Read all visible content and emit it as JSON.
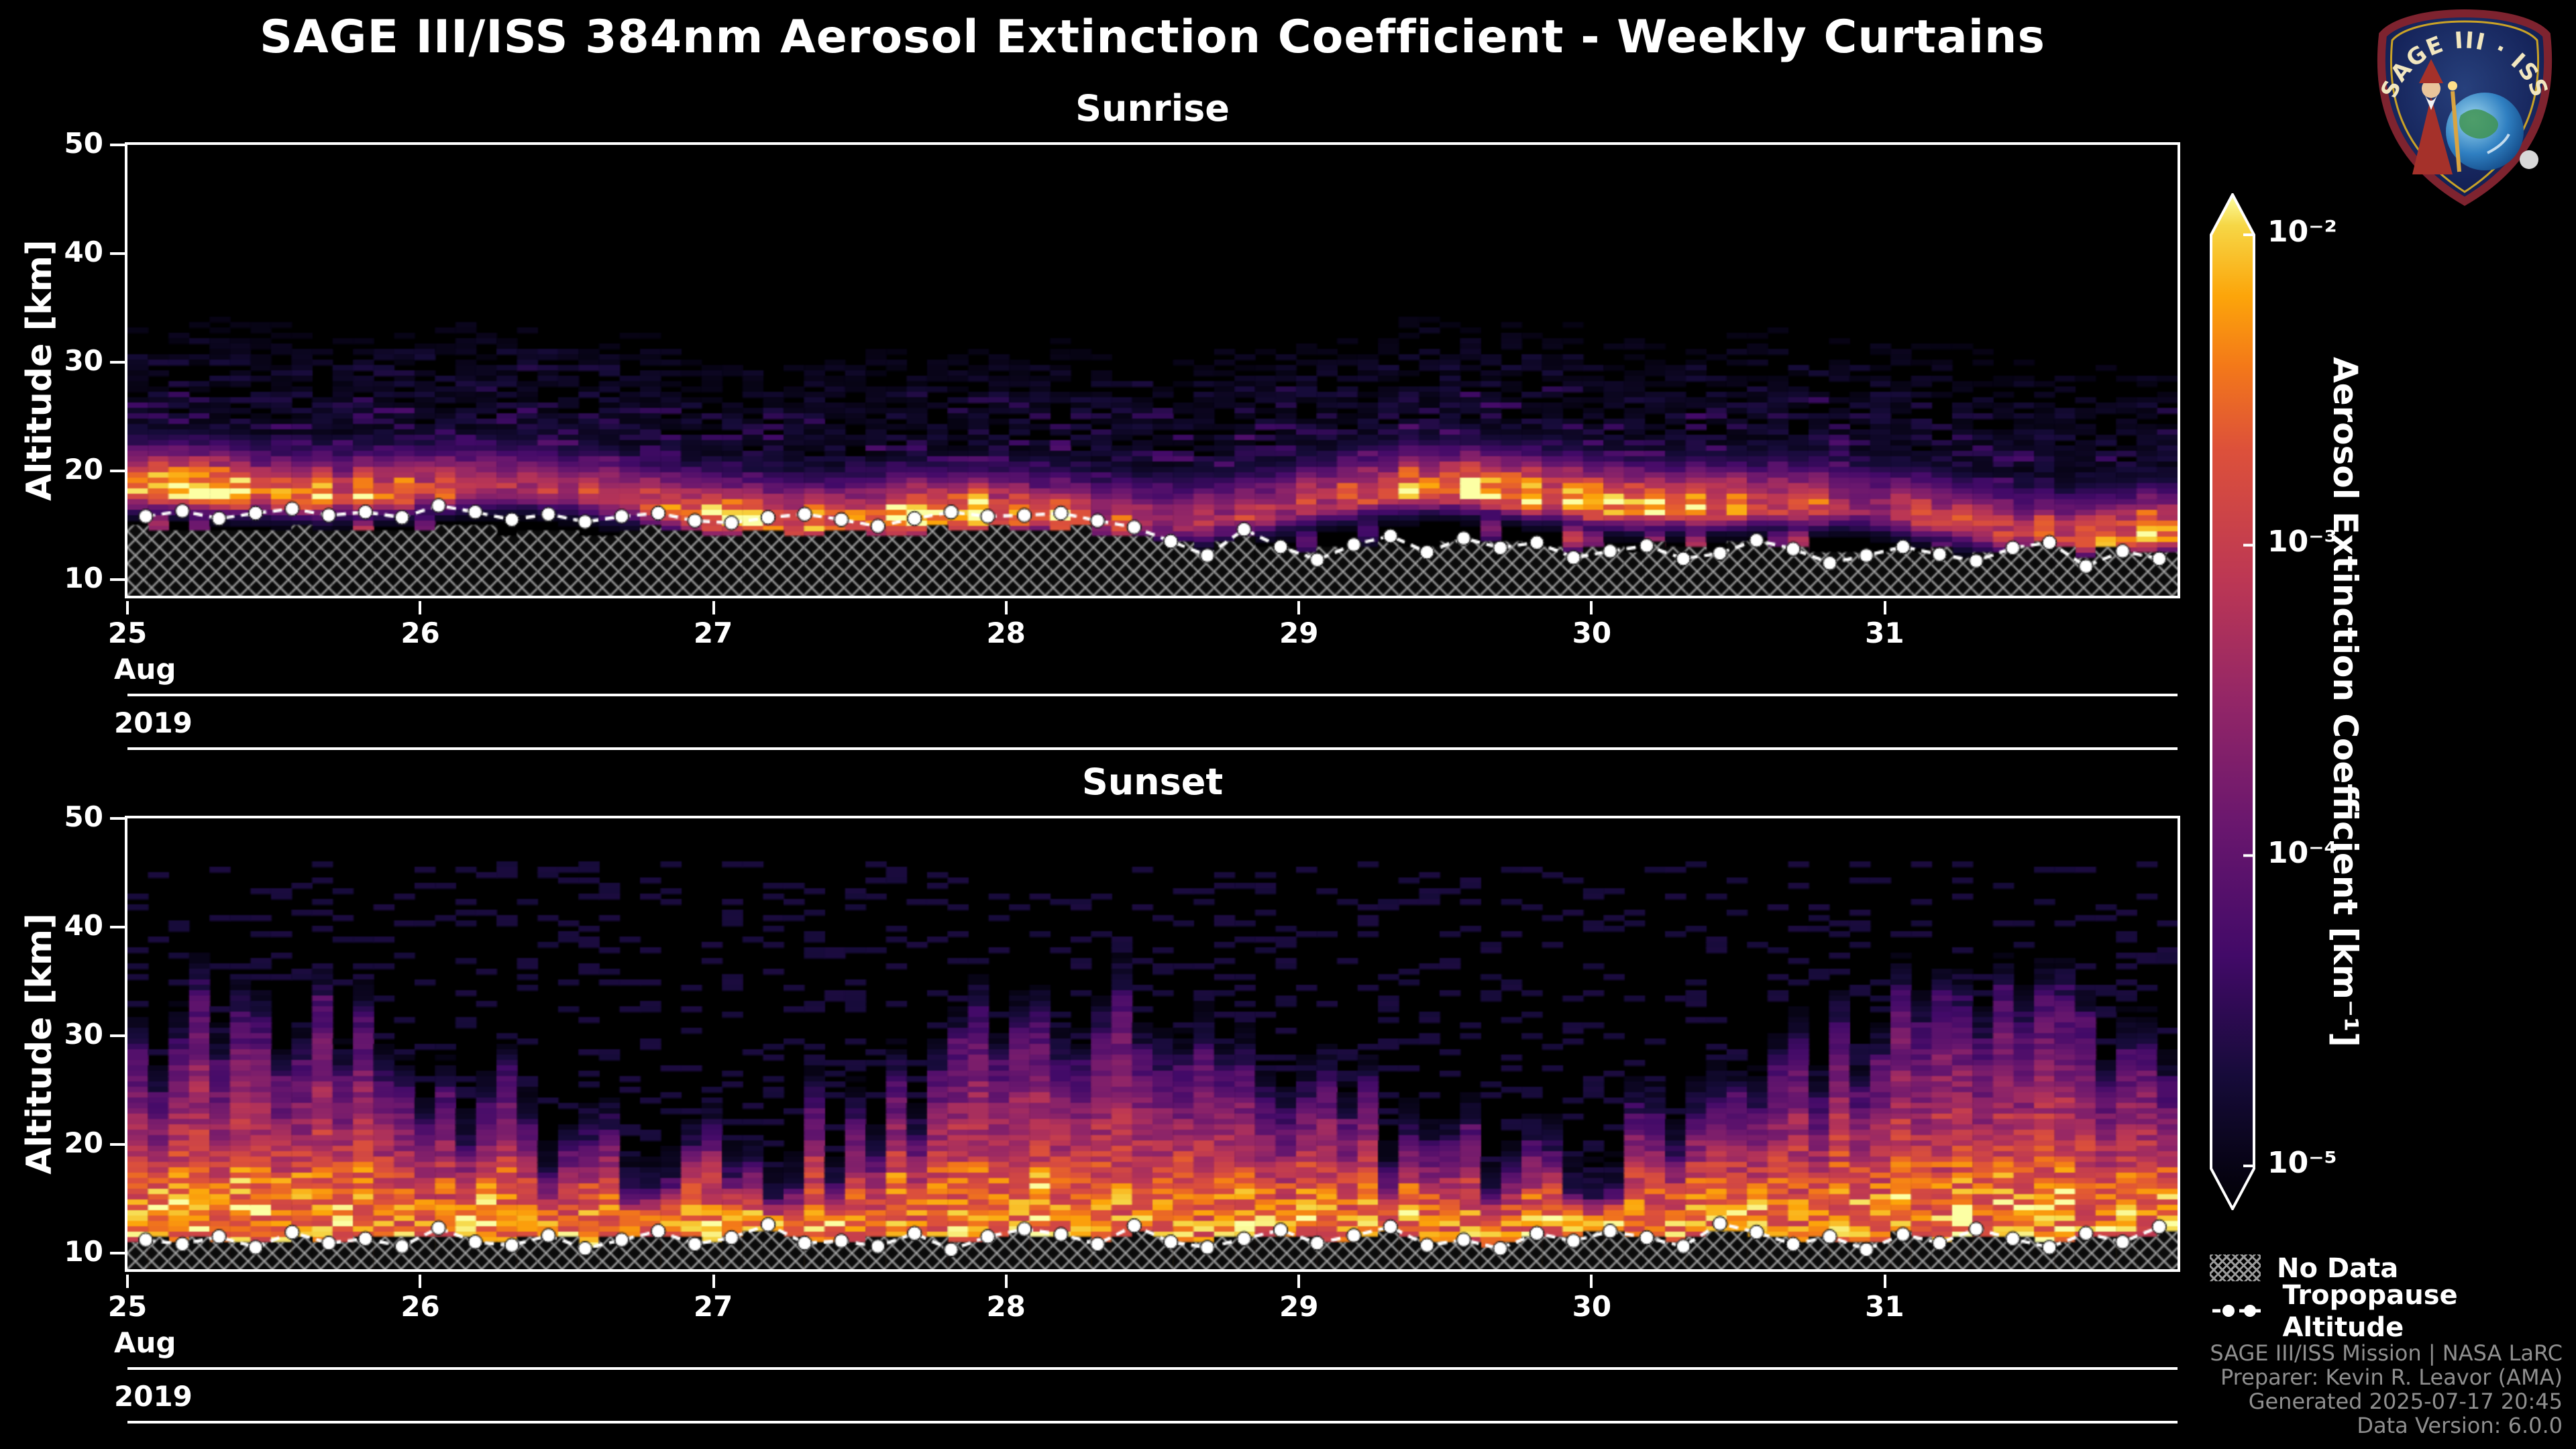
{
  "header": {
    "title": "SAGE III/ISS 384nm Aerosol Extinction Coefficient - Weekly Curtains",
    "logo_text": "SAGE III · ISS"
  },
  "colors": {
    "background": "#000000",
    "text": "#ffffff",
    "credits_text": "#8f8f8f",
    "hatch_line": "#9a9a9a",
    "tropopause_marker": "#ffffff",
    "colormap_stops": [
      {
        "t": 0.0,
        "hex": "#000004"
      },
      {
        "t": 0.13,
        "hex": "#160b39"
      },
      {
        "t": 0.25,
        "hex": "#420a68"
      },
      {
        "t": 0.38,
        "hex": "#6a176e"
      },
      {
        "t": 0.5,
        "hex": "#932667"
      },
      {
        "t": 0.62,
        "hex": "#bc3754"
      },
      {
        "t": 0.75,
        "hex": "#dd513a"
      },
      {
        "t": 0.83,
        "hex": "#f37819"
      },
      {
        "t": 0.9,
        "hex": "#fca50a"
      },
      {
        "t": 0.97,
        "hex": "#f6d746"
      },
      {
        "t": 1.0,
        "hex": "#fcffa4"
      }
    ]
  },
  "colorbar": {
    "label": "Aerosol Extinction Coefficient [km⁻¹]",
    "scale": "log",
    "min": 1e-05,
    "max": 0.01,
    "ticks": [
      {
        "label": "10⁻²",
        "value": 0.01
      },
      {
        "label": "10⁻³",
        "value": 0.001
      },
      {
        "label": "10⁻⁴",
        "value": 0.0001
      },
      {
        "label": "10⁻⁵",
        "value": 1e-05
      }
    ]
  },
  "legend": {
    "no_data_label": "No Data",
    "tropopause_label": "Tropopause Altitude"
  },
  "credits": {
    "line1": "SAGE III/ISS Mission | NASA LaRC",
    "line2": "Preparer: Kevin R. Leavor (AMA)",
    "line3": "Generated 2025-07-17 20:45",
    "line4": "Data Version: 6.0.0"
  },
  "chart_data": [
    {
      "type": "heatmap",
      "title": "Sunrise",
      "ylabel": "Altitude [km]",
      "y_ticks": [
        10,
        20,
        30,
        40,
        50
      ],
      "ylim": [
        8.5,
        50
      ],
      "x_axis": {
        "month": "Aug",
        "year": "2019",
        "tick_labels": [
          "25",
          "26",
          "27",
          "28",
          "29",
          "30",
          "31"
        ],
        "range_days": [
          25,
          32
        ]
      },
      "value_unit": "km⁻¹",
      "value_scale": {
        "type": "log",
        "min": 1e-05,
        "max": 0.01
      },
      "description": "Sunrise occultation curtain, Aug 25-31 2019: bright aerosol layer (1e-3 to 1e-2 km-1, orange/yellow) between ~14 and 22 km all week, brightest near days 26-28 around 17-20 km; faint purple speckled background (~1e-4 km-1) decaying up to ~45 km; cross-hatched no-data region below ~11-15 km.",
      "field_model": {
        "kind": "sunrise_layer",
        "seed": 7,
        "layer_center_km": 17.0,
        "layer_center_trend_km_per_day": -0.18,
        "layer_wobble_km": 1.4,
        "layer_sigma_up_km": 2.6,
        "layer_sigma_down_km": 1.2,
        "layer_peak_t": 0.97,
        "background_t_at_layer": 0.36,
        "background_decay_per_km": 0.0085,
        "speckle_fraction": 0.55
      },
      "tropopause_km": [
        15.8,
        16.3,
        15.6,
        16.1,
        16.5,
        15.9,
        16.2,
        15.7,
        16.8,
        16.2,
        15.5,
        16.0,
        15.3,
        15.8,
        16.1,
        15.4,
        15.2,
        15.7,
        16.0,
        15.5,
        14.9,
        15.6,
        16.2,
        15.8,
        15.9,
        16.1,
        15.4,
        14.8,
        13.5,
        12.2,
        14.6,
        13.0,
        11.8,
        13.2,
        14.0,
        12.5,
        13.8,
        12.9,
        13.4,
        12.0,
        12.6,
        13.1,
        11.9,
        12.4,
        13.6,
        12.8,
        11.5,
        12.2,
        13.0,
        12.3,
        11.7,
        12.9,
        13.4,
        11.2,
        12.6,
        11.9
      ],
      "no_data_boundary": {
        "blend_center_km": 13.2,
        "blend_weight": 0.5,
        "jitter_km": 0.4
      }
    },
    {
      "type": "heatmap",
      "title": "Sunset",
      "ylabel": "Altitude [km]",
      "y_ticks": [
        10,
        20,
        30,
        40,
        50
      ],
      "ylim": [
        8.5,
        50
      ],
      "x_axis": {
        "month": "Aug",
        "year": "2019",
        "tick_labels": [
          "25",
          "26",
          "27",
          "28",
          "29",
          "30",
          "31"
        ],
        "range_days": [
          25,
          32
        ]
      },
      "value_unit": "km⁻¹",
      "value_scale": {
        "type": "log",
        "min": 1e-05,
        "max": 0.01
      },
      "description": "Sunset occultation curtain, Aug 25-31 2019: broad orange extinction (~1e-3 km-1) from ~10 km up to column-like plume tops varying ~20-33 km, fading through purple (~1e-4 km-1) at the tops; dark above ~35 km with sparse purple specks; thin cross-hatched no-data band below ~10-11 km.",
      "field_model": {
        "kind": "sunset_plume",
        "seed": 13,
        "base_top_km": 24,
        "top_variation_km": 7,
        "bright_t": 0.8,
        "fade_t": 0.25,
        "bright_alt_km": 13,
        "fringe_km": 1.6,
        "speckle_fraction": 0.16
      },
      "tropopause_km": [
        11.2,
        10.8,
        11.5,
        10.5,
        11.9,
        10.9,
        11.3,
        10.6,
        12.3,
        11.0,
        10.7,
        11.6,
        10.4,
        11.2,
        12.0,
        10.8,
        11.4,
        12.6,
        10.9,
        11.1,
        10.6,
        11.8,
        10.3,
        11.5,
        12.2,
        11.7,
        10.8,
        12.5,
        11.0,
        10.5,
        11.3,
        12.1,
        10.9,
        11.6,
        12.4,
        10.7,
        11.2,
        10.4,
        11.8,
        11.1,
        12.0,
        11.4,
        10.6,
        12.7,
        11.9,
        10.8,
        11.5,
        10.3,
        11.7,
        10.9,
        12.2,
        11.3,
        10.5,
        11.8,
        11.0,
        12.4
      ],
      "no_data_boundary": {
        "blend_center_km": 11.4,
        "blend_weight": 0.5,
        "jitter_km": 0.3
      }
    }
  ]
}
